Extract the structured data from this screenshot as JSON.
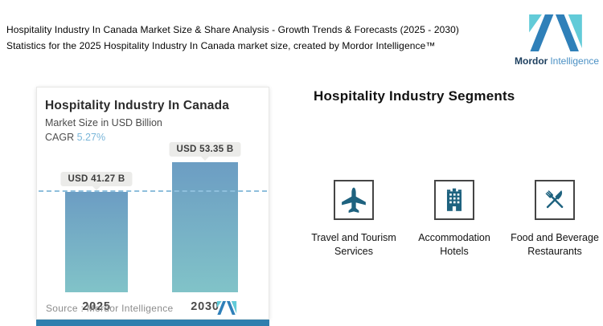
{
  "header": {
    "title_line1": "Hospitality Industry In Canada Market Size & Share Analysis - Growth Trends & Forecasts (2025 - 2030)",
    "title_line2": "Statistics for the 2025 Hospitality Industry In Canada market size, created by Mordor Intelligence™",
    "brand": {
      "name_bold": "Mordor",
      "name_light": "Intelligence"
    }
  },
  "chart_card": {
    "title": "Hospitality Industry In Canada",
    "subtitle": "Market Size in USD Billion",
    "cagr_label": "CAGR",
    "cagr_value": "5.27%",
    "source_label": "Source :  Mordor Intelligence"
  },
  "chart_data": {
    "type": "bar",
    "title": "Hospitality Industry In Canada",
    "subtitle": "Market Size in USD Billion",
    "categories": [
      "2025",
      "2030"
    ],
    "values": [
      41.27,
      53.35
    ],
    "bar_labels": [
      "USD 41.27 B",
      "USD 53.35 B"
    ],
    "unit": "USD Billion",
    "cagr_percent": 5.27,
    "ylim": [
      0,
      55
    ],
    "reference_line": {
      "style": "dashed",
      "value": 41.27
    },
    "legend": "none",
    "grid": "off"
  },
  "segments": {
    "heading": "Hospitality Industry Segments",
    "items": [
      {
        "icon": "airplane-icon",
        "line1": "Travel and Tourism",
        "line2": "Services"
      },
      {
        "icon": "hotel-building-icon",
        "line1": "Accommodation",
        "line2": "Hotels"
      },
      {
        "icon": "crossed-utensils-icon",
        "line1": "Food and Beverage",
        "line2": "Restaurants"
      }
    ]
  },
  "colors": {
    "icon_teal": "#1E627F",
    "bar_gradient_top": "#6C9DC3",
    "bar_gradient_bottom": "#81C3C8",
    "cagr_value_blue": "#7AB6D9",
    "dashed_line_blue": "#8EBFDC",
    "bottom_strip_blue": "#2F7FAE",
    "brand_blue": "#2F80B9",
    "brand_teal": "#62CBD8",
    "brand_navy": "#1C3E5E"
  }
}
